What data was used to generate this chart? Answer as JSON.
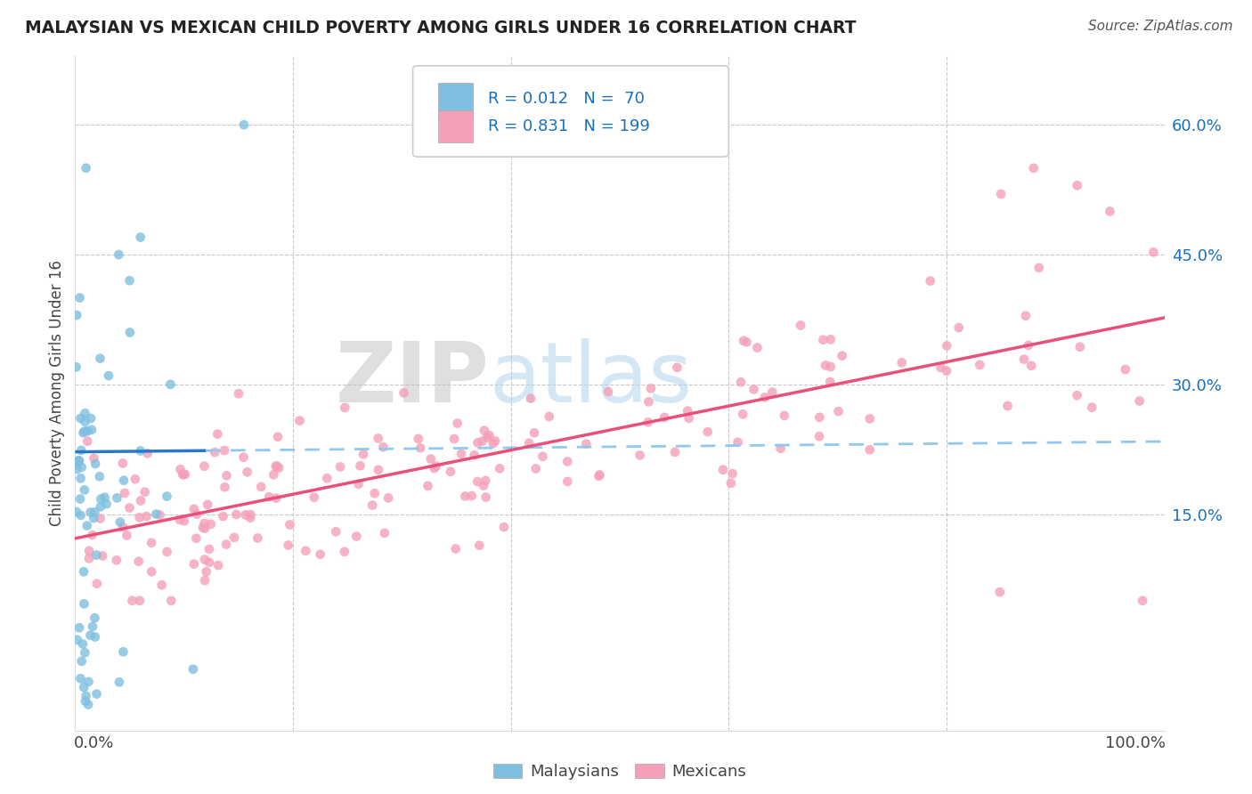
{
  "title": "MALAYSIAN VS MEXICAN CHILD POVERTY AMONG GIRLS UNDER 16 CORRELATION CHART",
  "source": "Source: ZipAtlas.com",
  "ylabel": "Child Poverty Among Girls Under 16",
  "xlim": [
    0.0,
    1.0
  ],
  "ylim": [
    -0.1,
    0.68
  ],
  "ytick_vals": [
    0.15,
    0.3,
    0.45,
    0.6
  ],
  "ytick_labels": [
    "15.0%",
    "30.0%",
    "45.0%",
    "60.0%"
  ],
  "xtick_vals": [
    0.2,
    0.4,
    0.6,
    0.8
  ],
  "malaysian_color": "#7fbfdf",
  "mexican_color": "#f4a0b8",
  "malaysian_line_color": "#2979c8",
  "mexican_line_color": "#e8507a",
  "dashed_line_color": "#90c8f0",
  "watermark_zip": "#c8c8c8",
  "watermark_atlas": "#b8d8f0",
  "background_color": "#ffffff",
  "grid_color": "#c8c8c8",
  "legend_r1": "R = 0.012",
  "legend_n1": "N =  70",
  "legend_r2": "R = 0.831",
  "legend_n2": "N = 199",
  "label_color": "#1a6fbd",
  "axis_label_color": "#444444"
}
